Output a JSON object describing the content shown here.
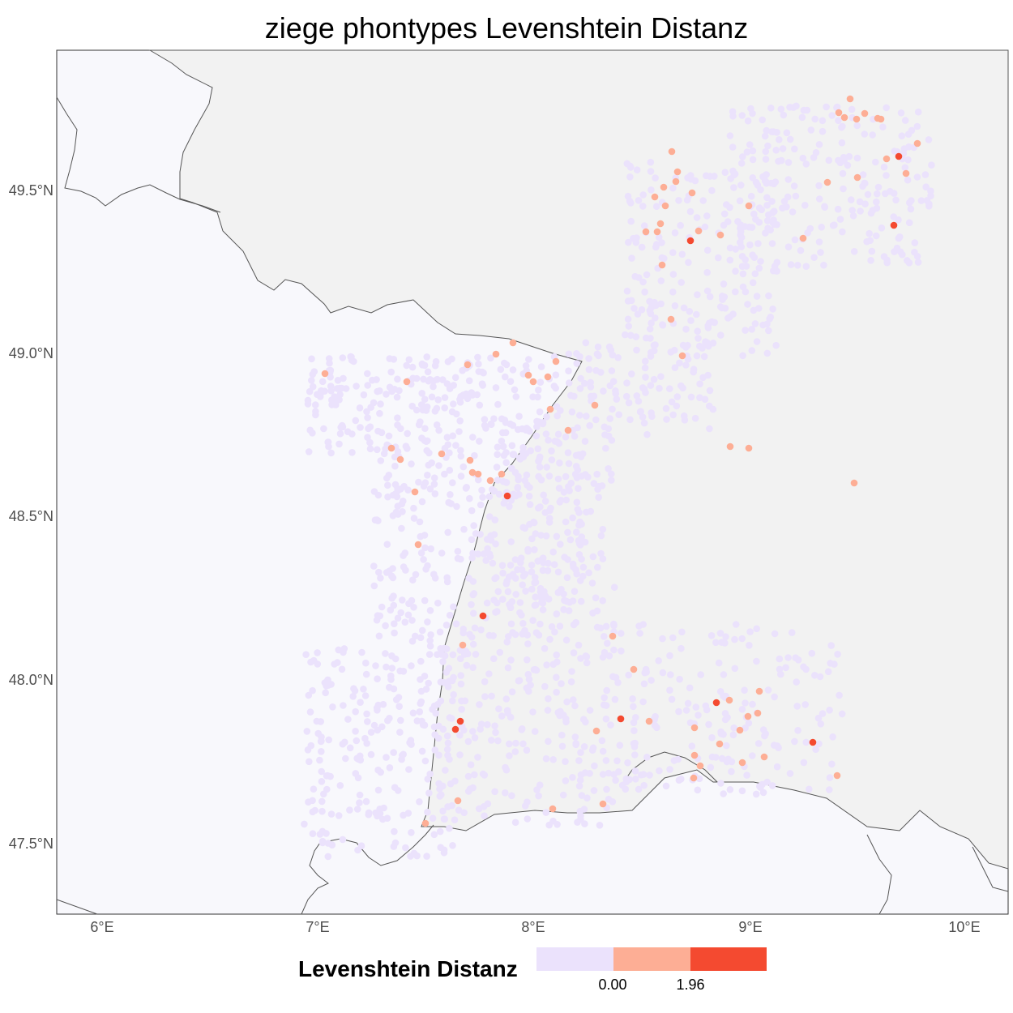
{
  "title": "ziege phontypes Levenshtein Distanz",
  "colors": {
    "panel_bg": "#f8f8fc",
    "land_other": "#f2f2f2",
    "point_zero": "#ebe2fc",
    "point_mid": "#fdae95",
    "point_high": "#f44a30",
    "border": "#555555"
  },
  "axes": {
    "y_ticks": [
      "49.5°N",
      "49.0°N",
      "48.5°N",
      "48.0°N",
      "47.5°N"
    ],
    "x_ticks": [
      "6°E",
      "7°E",
      "8°E",
      "9°E",
      "10°E"
    ]
  },
  "legend": {
    "title": "Levenshtein Distanz",
    "labels": [
      "0.00",
      "1.96"
    ]
  }
}
